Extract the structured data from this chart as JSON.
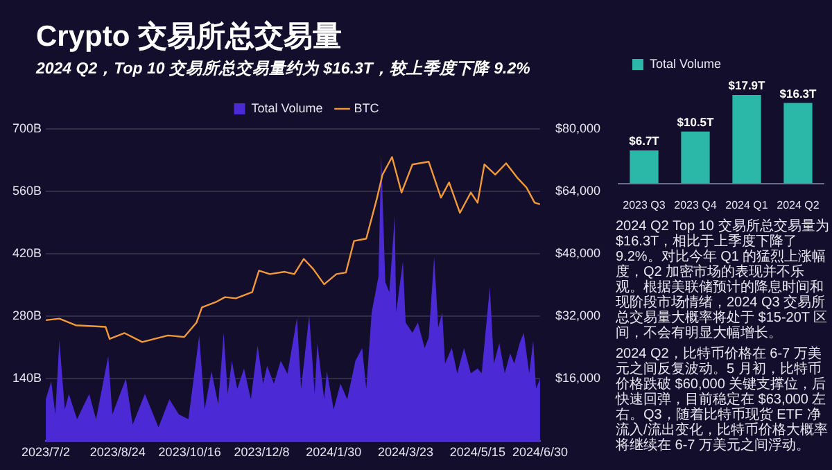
{
  "chart_data": [
    {
      "type": "area",
      "title": "Crypto 交易所总交易量",
      "subtitle": "2024 Q2，Top 10 交易所总交易量约为 $16.3T，较上季度下降 9.2%",
      "legend": "top",
      "grid": "y",
      "xlim": [
        "2023-07-02",
        "2024-06-30"
      ],
      "xticks": [
        {
          "value": "2023-07-02",
          "label": "2023/7/2"
        },
        {
          "value": "2023-08-24",
          "label": "2023/8/24"
        },
        {
          "value": "2023-10-16",
          "label": "2023/10/16"
        },
        {
          "value": "2023-12-08",
          "label": "2023/12/8"
        },
        {
          "value": "2024-01-30",
          "label": "2024/1/30"
        },
        {
          "value": "2024-03-23",
          "label": "2024/3/23"
        },
        {
          "value": "2024-05-15",
          "label": "2024/5/15"
        },
        {
          "value": "2024-06-30",
          "label": "2024/6/30"
        }
      ],
      "ylim": [
        0,
        700
      ],
      "yticks": [
        {
          "value": 140,
          "label": "140B"
        },
        {
          "value": 280,
          "label": "280B"
        },
        {
          "value": 420,
          "label": "420B"
        },
        {
          "value": 560,
          "label": "560B"
        },
        {
          "value": 700,
          "label": "700B"
        }
      ],
      "y2lim": [
        0,
        80000
      ],
      "y2ticks": [
        {
          "value": 16000,
          "label": "$16,000"
        },
        {
          "value": 32000,
          "label": "$32,000"
        },
        {
          "value": 48000,
          "label": "$48,000"
        },
        {
          "value": 64000,
          "label": "$64,000"
        },
        {
          "value": 80000,
          "label": "$80,000"
        }
      ],
      "series": [
        {
          "name": "Total Volume",
          "color": "#4b2ad6",
          "x": [
            "2023-07-02",
            "2023-07-06",
            "2023-07-09",
            "2023-07-12",
            "2023-07-16",
            "2023-07-19",
            "2023-07-25",
            "2023-08-03",
            "2023-08-08",
            "2023-08-17",
            "2023-08-20",
            "2023-08-30",
            "2023-09-04",
            "2023-09-13",
            "2023-09-23",
            "2023-10-01",
            "2023-10-08",
            "2023-10-15",
            "2023-10-23",
            "2023-10-27",
            "2023-11-01",
            "2023-11-06",
            "2023-11-10",
            "2023-11-13",
            "2023-11-16",
            "2023-11-20",
            "2023-11-25",
            "2023-11-30",
            "2023-12-05",
            "2023-12-09",
            "2023-12-12",
            "2023-12-17",
            "2023-12-22",
            "2023-12-27",
            "2024-01-03",
            "2024-01-06",
            "2024-01-12",
            "2024-01-16",
            "2024-01-18",
            "2024-01-23",
            "2024-01-25",
            "2024-01-30",
            "2024-02-04",
            "2024-02-09",
            "2024-02-15",
            "2024-02-20",
            "2024-02-23",
            "2024-02-27",
            "2024-03-03",
            "2024-03-05",
            "2024-03-08",
            "2024-03-11",
            "2024-03-15",
            "2024-03-16",
            "2024-03-21",
            "2024-03-23",
            "2024-03-28",
            "2024-04-01",
            "2024-04-06",
            "2024-04-09",
            "2024-04-13",
            "2024-04-16",
            "2024-04-19",
            "2024-04-21",
            "2024-04-26",
            "2024-04-30",
            "2024-05-05",
            "2024-05-10",
            "2024-05-15",
            "2024-05-18",
            "2024-05-24",
            "2024-05-27",
            "2024-05-31",
            "2024-06-04",
            "2024-06-08",
            "2024-06-11",
            "2024-06-15",
            "2024-06-18",
            "2024-06-22",
            "2024-06-25",
            "2024-06-27",
            "2024-06-30"
          ],
          "values": [
            94,
            134,
            60,
            226,
            71,
            106,
            49,
            106,
            49,
            191,
            60,
            140,
            37,
            106,
            31,
            94,
            60,
            49,
            237,
            71,
            157,
            83,
            243,
            106,
            180,
            117,
            163,
            94,
            214,
            129,
            169,
            129,
            180,
            151,
            277,
            117,
            283,
            106,
            220,
            94,
            157,
            71,
            129,
            94,
            180,
            209,
            117,
            289,
            369,
            644,
            357,
            334,
            506,
            289,
            403,
            266,
            243,
            266,
            209,
            232,
            414,
            255,
            289,
            174,
            209,
            152,
            209,
            152,
            163,
            152,
            346,
            174,
            220,
            152,
            197,
            174,
            220,
            243,
            152,
            226,
            117,
            140
          ]
        },
        {
          "name": "BTC",
          "type": "line",
          "axis": "y2",
          "color": "#f29a38",
          "x": [
            "2023-07-02",
            "2023-07-12",
            "2023-07-24",
            "2023-08-15",
            "2023-08-18",
            "2023-08-29",
            "2023-09-11",
            "2023-09-30",
            "2023-10-12",
            "2023-10-21",
            "2023-10-25",
            "2023-11-04",
            "2023-11-11",
            "2023-11-19",
            "2023-12-01",
            "2023-12-06",
            "2023-12-14",
            "2023-12-25",
            "2024-01-01",
            "2024-01-08",
            "2024-01-15",
            "2024-01-23",
            "2024-02-01",
            "2024-02-08",
            "2024-02-14",
            "2024-02-23",
            "2024-03-02",
            "2024-03-06",
            "2024-03-13",
            "2024-03-20",
            "2024-03-28",
            "2024-04-09",
            "2024-04-18",
            "2024-04-24",
            "2024-05-02",
            "2024-05-10",
            "2024-05-15",
            "2024-05-20",
            "2024-05-28",
            "2024-06-05",
            "2024-06-13",
            "2024-06-20",
            "2024-06-26",
            "2024-06-30"
          ],
          "values": [
            31000,
            31400,
            29700,
            29300,
            26200,
            27700,
            25400,
            27100,
            26700,
            30400,
            34300,
            35600,
            36900,
            36600,
            38200,
            43700,
            42800,
            43400,
            42800,
            46700,
            44100,
            40200,
            42800,
            43200,
            51300,
            51900,
            62400,
            68300,
            72800,
            63700,
            70900,
            71600,
            62400,
            66300,
            58500,
            63700,
            61100,
            70900,
            68300,
            71200,
            67600,
            65000,
            61100,
            60700
          ]
        }
      ]
    },
    {
      "type": "bar",
      "legend": "top left",
      "categories": [
        "2023 Q3",
        "2023 Q4",
        "2024 Q1",
        "2024 Q2"
      ],
      "series": [
        {
          "name": "Total Volume",
          "color": "#2bb8a8",
          "values": [
            6.7,
            10.5,
            17.9,
            16.3
          ],
          "value_labels": [
            "$6.7T",
            "$10.5T",
            "$17.9T",
            "$16.3T"
          ]
        }
      ]
    },
    {
      "type": "other",
      "annotations": [
        "2024 Q2 Top 10 交易所总交易量为 $16.3T，相比于上季度下降了 9.2%。对比今年 Q1 的猛烈上涨幅度，Q2 加密市场的表现并不乐观。根据美联储预计的降息时间和现阶段市场情绪，2024 Q3 交易所总交易量大概率将处于 $15-20T 区间，不会有明显大幅增长。",
        "2024 Q2，比特币价格在 6-7 万美元之间反复波动。5 月初，比特币价格跌破 $60,000 关键支撑位，后快速回弹，目前稳定在 $63,000 左右。Q3，随着比特币现货 ETF 净流入/流出变化，比特币价格大概率将继续在 6-7 万美元之间浮动。"
      ]
    }
  ]
}
